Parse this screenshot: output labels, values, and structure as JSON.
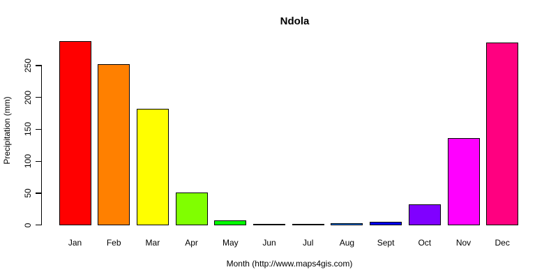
{
  "chart_data": {
    "type": "bar",
    "title": "Ndola",
    "xlabel": "Month (http://www.maps4gis.com)",
    "ylabel": "Precipitation (mm)",
    "categories": [
      "Jan",
      "Feb",
      "Mar",
      "Apr",
      "May",
      "Jun",
      "Jul",
      "Aug",
      "Sept",
      "Oct",
      "Nov",
      "Dec"
    ],
    "values": [
      286,
      250,
      180,
      49,
      5,
      0,
      0,
      1,
      3,
      30,
      134,
      284
    ],
    "bar_colors": [
      "#FF0000",
      "#FF8000",
      "#FFFF00",
      "#80FF00",
      "#00FF00",
      "#00FF80",
      "#00FFFF",
      "#0080FF",
      "#0000FF",
      "#8000FF",
      "#FF00FF",
      "#FF0080"
    ],
    "bar_border_color": "#000000",
    "axis_color": "#000000",
    "yticks": [
      "0",
      "50",
      "100",
      "150",
      "200",
      "250"
    ],
    "ytick_values": [
      0,
      50,
      100,
      150,
      200,
      250
    ],
    "ylim": [
      0,
      290
    ],
    "grid": false,
    "legend_position": "none",
    "background_color": "#FFFFFF"
  }
}
